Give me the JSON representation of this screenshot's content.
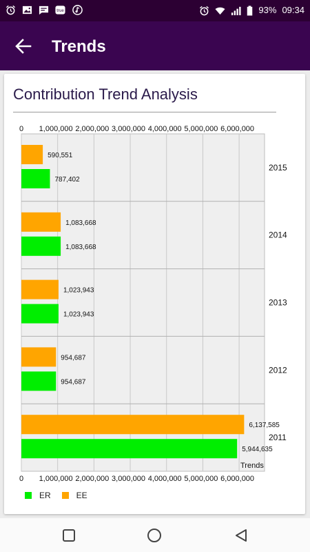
{
  "status_bar": {
    "icons_left": [
      "alarm-icon",
      "image-icon",
      "message-icon",
      "true-app-icon",
      "music-icon"
    ],
    "true_label": "true",
    "battery": "93%",
    "time": "09:34"
  },
  "app_bar": {
    "title": "Trends"
  },
  "card": {
    "title": "Contribution Trend Analysis"
  },
  "legend": {
    "er": "ER",
    "ee": "EE"
  },
  "colors": {
    "er": "#00ee00",
    "ee": "#ffa500",
    "appbar": "#3a0550",
    "statusbar": "#2c0033"
  },
  "chart_data": {
    "type": "bar",
    "orientation": "horizontal",
    "categories": [
      "2015",
      "2014",
      "2013",
      "2012",
      "2011"
    ],
    "series": [
      {
        "name": "EE",
        "values": [
          590551,
          1083668,
          1023943,
          954687,
          6137585
        ],
        "labels": [
          "590,551",
          "1,083,668",
          "1,023,943",
          "954,687",
          "6,137,585"
        ]
      },
      {
        "name": "ER",
        "values": [
          787402,
          1083668,
          1023943,
          954687,
          5944635
        ],
        "labels": [
          "787,402",
          "1,083,668",
          "1,023,943",
          "954,687",
          "5,944,635"
        ]
      }
    ],
    "xlim": [
      0,
      6700000
    ],
    "xticks": [
      0,
      1000000,
      2000000,
      3000000,
      4000000,
      5000000,
      6000000
    ],
    "xtick_labels": [
      "0",
      "1,000,000",
      "2,000,000",
      "3,000,000",
      "4,000,000",
      "5,000,000",
      "6,000,000"
    ],
    "axis_label": "Trends",
    "grid": true,
    "legend_position": "bottom-left"
  }
}
